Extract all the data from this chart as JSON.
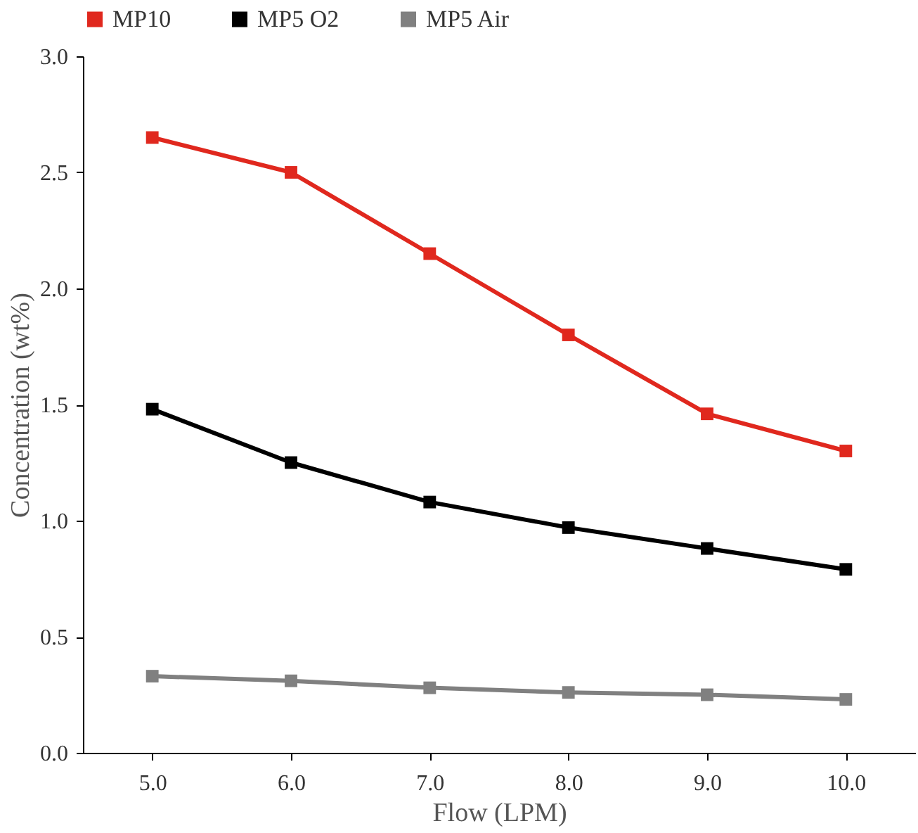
{
  "chart_data": {
    "type": "line",
    "xlabel": "Flow (LPM)",
    "ylabel": "Concentration (wt%)",
    "x": [
      5,
      6,
      7,
      8,
      9,
      10
    ],
    "xlim": [
      4.5,
      10.5
    ],
    "xticks": [
      {
        "value": 5,
        "label": "5.0"
      },
      {
        "value": 6,
        "label": "6.0"
      },
      {
        "value": 7,
        "label": "7.0"
      },
      {
        "value": 8,
        "label": "8.0"
      },
      {
        "value": 9,
        "label": "9.0"
      },
      {
        "value": 10,
        "label": "10.0"
      }
    ],
    "ylim": [
      0,
      3
    ],
    "yticks": [
      {
        "value": 0,
        "label": "0.0"
      },
      {
        "value": 0.5,
        "label": "0.5"
      },
      {
        "value": 1,
        "label": "1.0"
      },
      {
        "value": 1.5,
        "label": "1.5"
      },
      {
        "value": 2,
        "label": "2.0"
      },
      {
        "value": 2.5,
        "label": "2.5"
      },
      {
        "value": 3,
        "label": "3.0"
      }
    ],
    "series": [
      {
        "name": "MP10",
        "color": "#e0281e",
        "values": [
          2.65,
          2.5,
          2.15,
          1.8,
          1.46,
          1.3
        ]
      },
      {
        "name": "MP5 O2",
        "color": "#000000",
        "values": [
          1.48,
          1.25,
          1.08,
          0.97,
          0.88,
          0.79
        ]
      },
      {
        "name": "MP5 Air",
        "color": "#808080",
        "values": [
          0.33,
          0.31,
          0.28,
          0.26,
          0.25,
          0.23
        ]
      }
    ],
    "marker": "square",
    "line_style": "solid",
    "grid": false,
    "legend": "top"
  }
}
